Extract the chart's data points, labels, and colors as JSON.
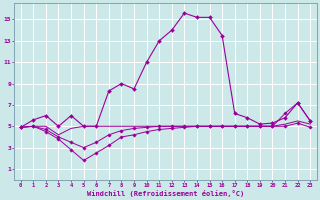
{
  "main_x": [
    0,
    1,
    2,
    3,
    4,
    5,
    6,
    7,
    8,
    9,
    10,
    11,
    12,
    13,
    14,
    15,
    16,
    17,
    18,
    19,
    20,
    21,
    22,
    23
  ],
  "main_y": [
    4.9,
    5.6,
    6.0,
    5.0,
    6.0,
    5.0,
    5.0,
    8.3,
    9.0,
    8.5,
    11.0,
    13.0,
    14.0,
    15.6,
    15.2,
    15.2,
    13.5,
    6.2,
    5.8,
    5.2,
    5.3,
    5.8,
    7.2,
    5.5
  ],
  "line2_x": [
    0,
    1,
    2,
    3,
    4,
    5,
    6,
    7,
    8,
    9,
    10,
    11,
    12,
    13,
    14,
    15,
    16,
    17,
    18,
    19,
    20,
    21,
    22,
    23
  ],
  "line2_y": [
    4.9,
    5.0,
    5.0,
    4.2,
    4.8,
    5.0,
    5.0,
    5.0,
    5.0,
    5.0,
    5.0,
    5.0,
    5.0,
    5.0,
    5.0,
    5.0,
    5.0,
    5.0,
    5.0,
    5.0,
    5.0,
    5.2,
    5.5,
    5.2
  ],
  "line3_x": [
    0,
    1,
    2,
    3,
    4,
    5,
    6,
    7,
    8,
    9,
    10,
    11,
    12,
    13,
    14,
    15,
    16,
    17,
    18,
    19,
    20,
    21,
    22,
    23
  ],
  "line3_y": [
    4.9,
    5.0,
    4.5,
    3.8,
    2.8,
    1.8,
    2.5,
    3.2,
    4.0,
    4.2,
    4.5,
    4.7,
    4.8,
    4.9,
    5.0,
    5.0,
    5.0,
    5.0,
    5.0,
    5.0,
    5.0,
    5.0,
    5.3,
    4.9
  ],
  "line4_x": [
    0,
    1,
    2,
    3,
    4,
    5,
    6,
    7,
    8,
    9,
    10,
    11,
    12,
    13,
    14,
    15,
    16,
    17,
    18,
    19,
    20,
    21,
    22,
    23
  ],
  "line4_y": [
    4.9,
    5.0,
    4.7,
    4.0,
    3.5,
    3.0,
    3.5,
    4.2,
    4.6,
    4.8,
    4.9,
    5.0,
    5.0,
    5.0,
    5.0,
    5.0,
    5.0,
    5.0,
    5.0,
    5.0,
    5.0,
    6.2,
    7.2,
    5.5
  ],
  "bg_color": "#cce8e8",
  "line_color": "#990099",
  "grid_color": "#aacccc",
  "xlabel": "Windchill (Refroidissement éolien,°C)",
  "yticks": [
    1,
    3,
    5,
    7,
    9,
    11,
    13,
    15
  ],
  "xticks": [
    0,
    1,
    2,
    3,
    4,
    5,
    6,
    7,
    8,
    9,
    10,
    11,
    12,
    13,
    14,
    15,
    16,
    17,
    18,
    19,
    20,
    21,
    22,
    23
  ]
}
